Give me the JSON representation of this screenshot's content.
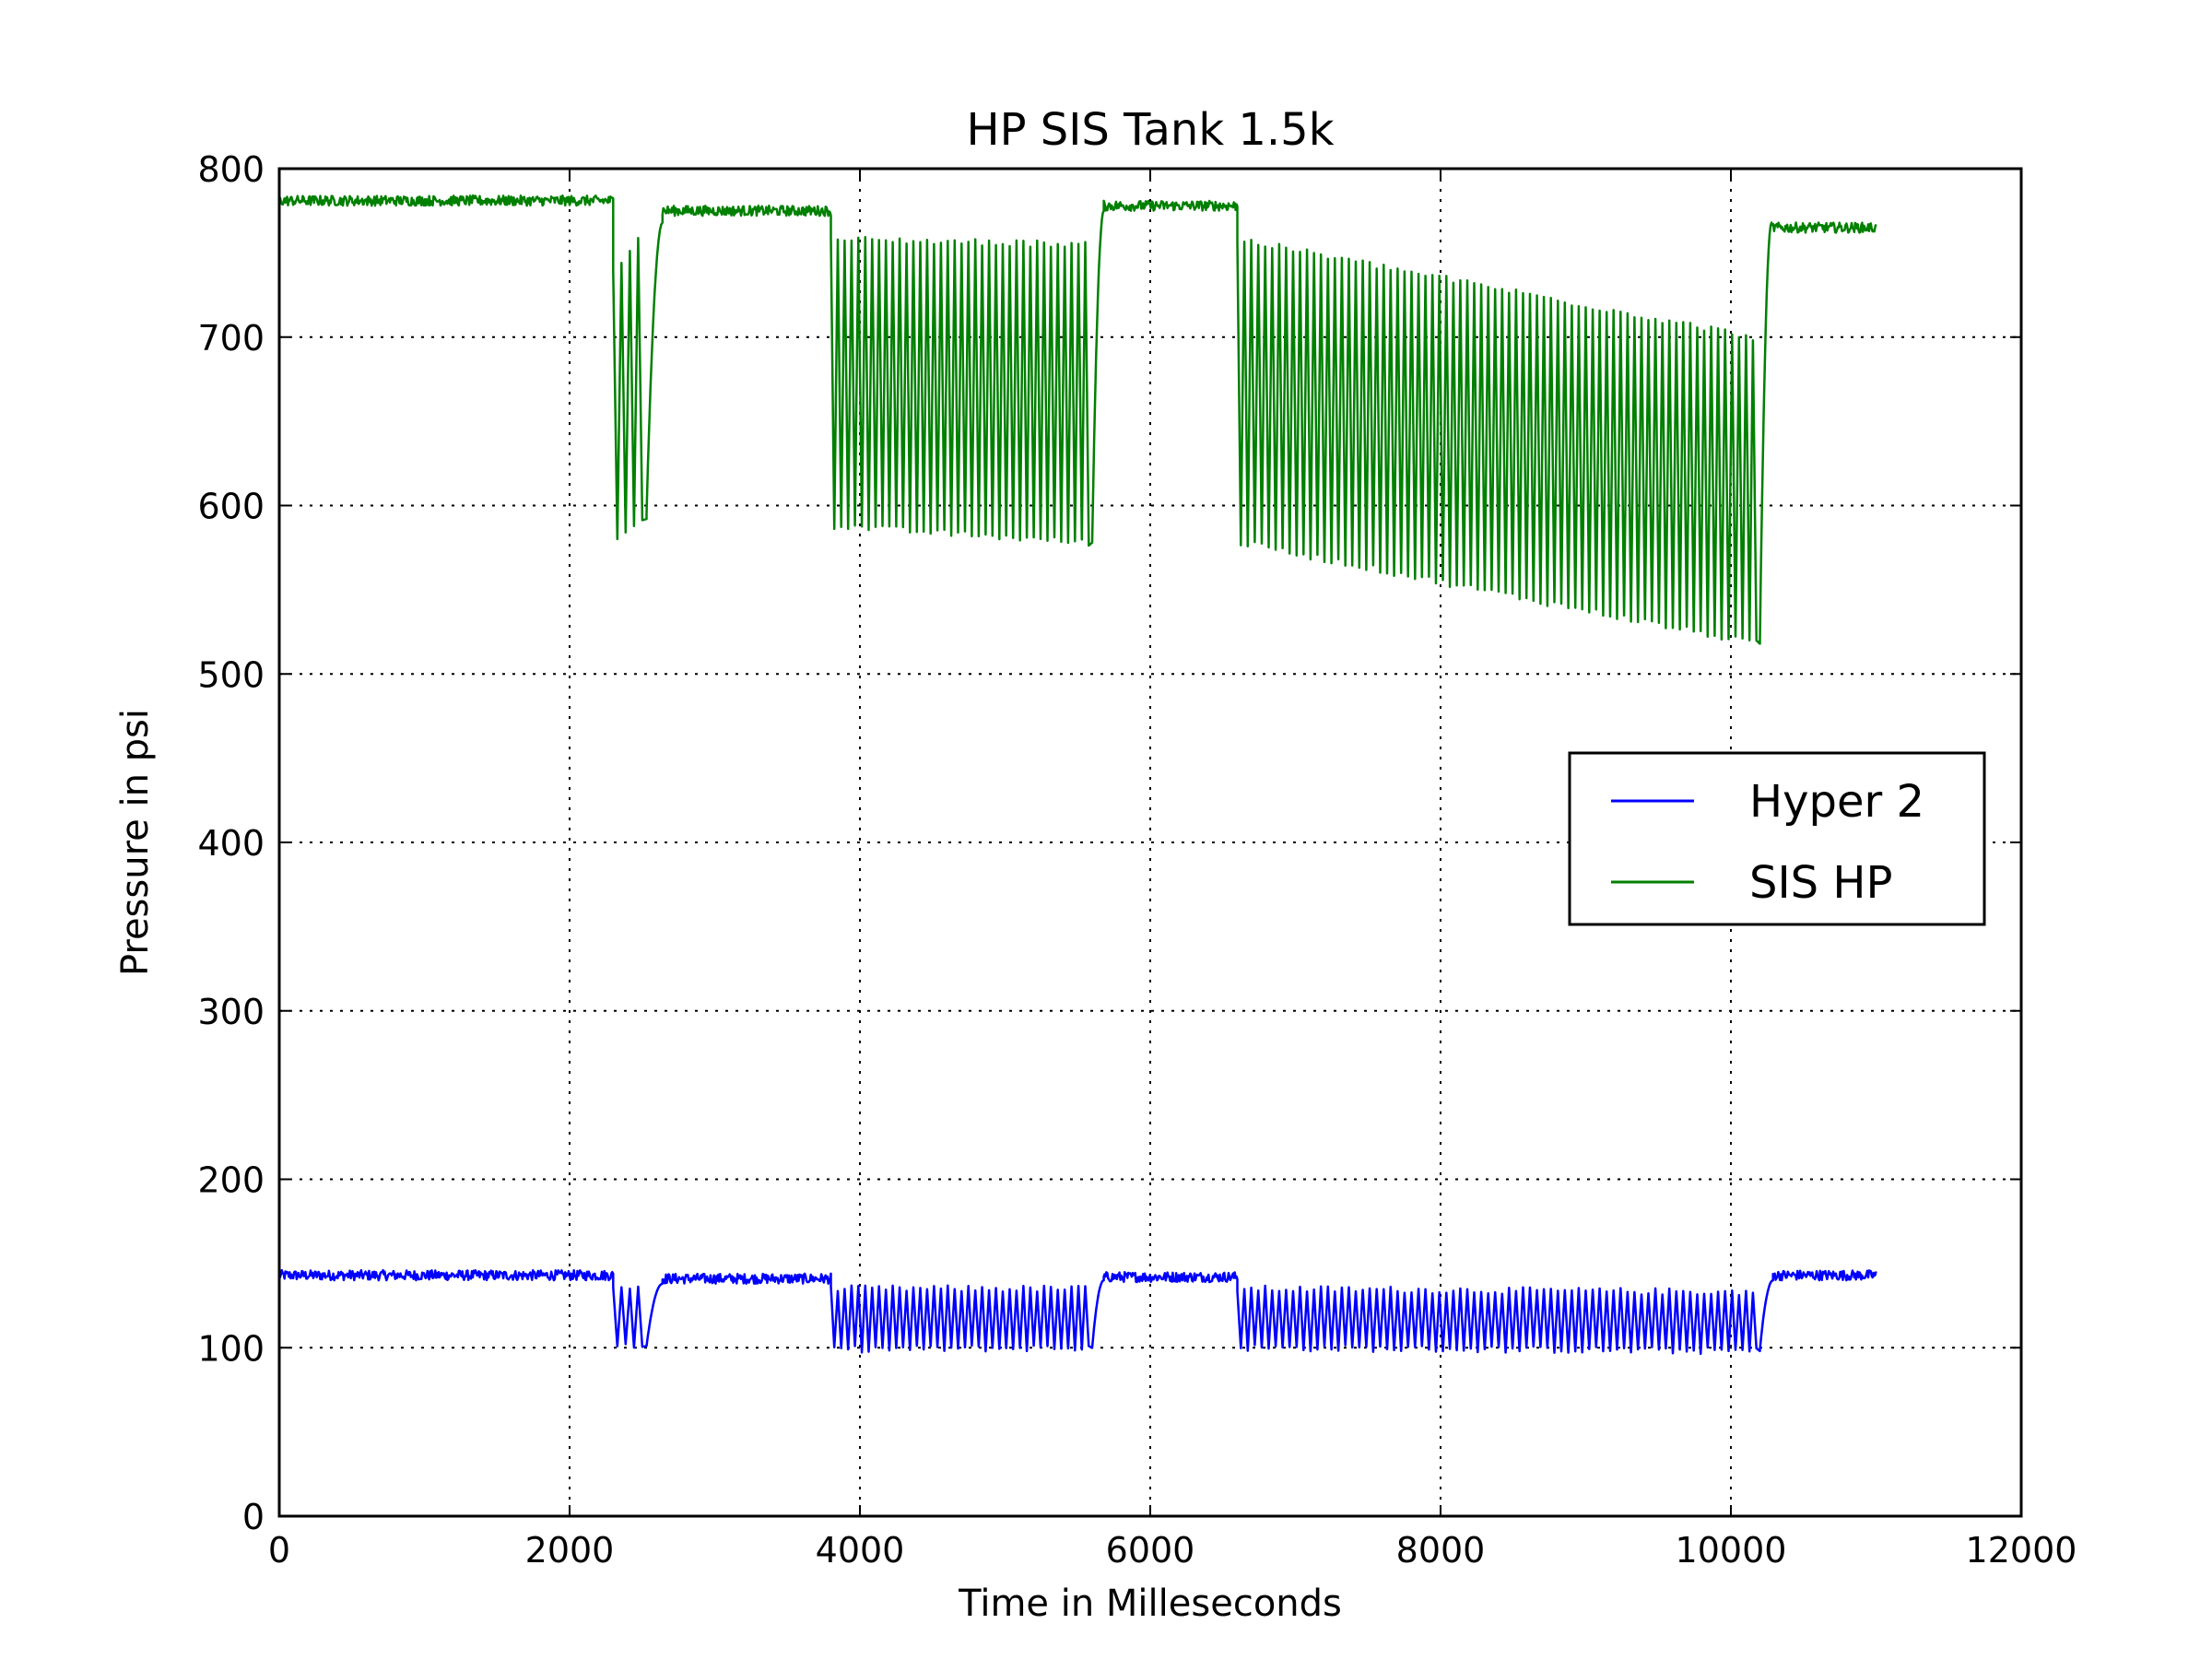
{
  "chart_data": {
    "type": "line",
    "title": "HP SIS Tank 1.5k",
    "xlabel": "Time in Milleseconds",
    "ylabel": "Pressure in psi",
    "xlim": [
      0,
      12000
    ],
    "ylim": [
      0,
      800
    ],
    "xticks": [
      0,
      2000,
      4000,
      6000,
      8000,
      10000,
      12000
    ],
    "yticks": [
      0,
      100,
      200,
      300,
      400,
      500,
      600,
      700,
      800
    ],
    "grid": true,
    "legend_position": "center-right",
    "series": [
      {
        "name": "Hyper 2",
        "color": "#0000ff",
        "segments": [
          {
            "kind": "flat",
            "x_start": 0,
            "x_end": 2300,
            "value": 143
          },
          {
            "kind": "osc",
            "x_start": 2300,
            "x_end": 2530,
            "high": 137,
            "low": 101,
            "high_end": 137,
            "low_end": 101,
            "cycles": 4
          },
          {
            "kind": "ramp",
            "x_start": 2530,
            "x_end": 2640,
            "from": 101,
            "to": 138
          },
          {
            "kind": "flat",
            "x_start": 2640,
            "x_end": 3800,
            "value": 141
          },
          {
            "kind": "osc",
            "x_start": 3800,
            "x_end": 5600,
            "high": 135,
            "low": 99,
            "high_end": 135,
            "low_end": 100,
            "cycles": 38
          },
          {
            "kind": "ramp",
            "x_start": 5600,
            "x_end": 5680,
            "from": 100,
            "to": 140
          },
          {
            "kind": "flat",
            "x_start": 5680,
            "x_end": 6600,
            "value": 142
          },
          {
            "kind": "osc",
            "x_start": 6600,
            "x_end": 10200,
            "high": 135,
            "low": 100,
            "high_end": 133,
            "low_end": 98,
            "cycles": 75
          },
          {
            "kind": "ramp",
            "x_start": 10200,
            "x_end": 10290,
            "from": 99,
            "to": 140
          },
          {
            "kind": "flat",
            "x_start": 10290,
            "x_end": 11000,
            "value": 143
          }
        ]
      },
      {
        "name": "SIS HP",
        "color": "#008000",
        "segments": [
          {
            "kind": "flat",
            "x_start": 0,
            "x_end": 2300,
            "value": 781
          },
          {
            "kind": "osc",
            "x_start": 2300,
            "x_end": 2530,
            "high": 740,
            "low": 582,
            "high_end": 758,
            "low_end": 592,
            "cycles": 4
          },
          {
            "kind": "ramp",
            "x_start": 2530,
            "x_end": 2640,
            "from": 595,
            "to": 768
          },
          {
            "kind": "flat",
            "x_start": 2640,
            "x_end": 3800,
            "value": 775
          },
          {
            "kind": "osc",
            "x_start": 3800,
            "x_end": 5600,
            "high": 758,
            "low": 588,
            "high_end": 755,
            "low_end": 578,
            "cycles": 38
          },
          {
            "kind": "ramp",
            "x_start": 5600,
            "x_end": 5680,
            "from": 578,
            "to": 775
          },
          {
            "kind": "flat",
            "x_start": 5680,
            "x_end": 6600,
            "value": 778
          },
          {
            "kind": "osc",
            "x_start": 6600,
            "x_end": 10200,
            "high": 758,
            "low": 578,
            "high_end": 700,
            "low_end": 518,
            "cycles": 75
          },
          {
            "kind": "ramp",
            "x_start": 10200,
            "x_end": 10280,
            "from": 520,
            "to": 768
          },
          {
            "kind": "flat",
            "x_start": 10280,
            "x_end": 11000,
            "value": 765
          }
        ]
      }
    ]
  }
}
